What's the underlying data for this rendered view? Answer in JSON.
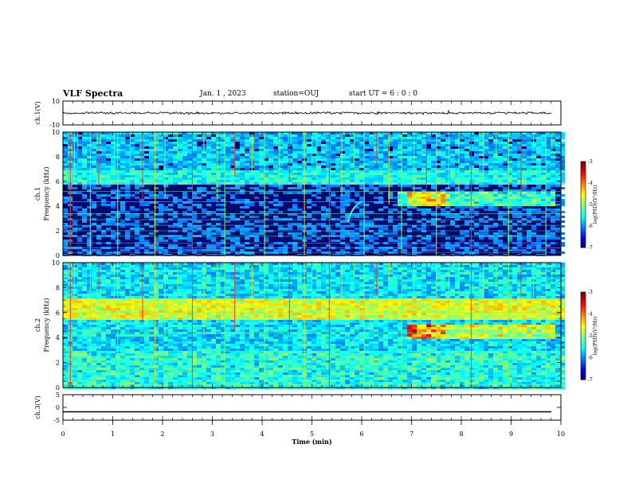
{
  "header": {
    "title": "VLF Spectra",
    "date": "Jan. 1 , 2023",
    "station": "station=OUJ",
    "start": "start UT = 6 : 0 : 0"
  },
  "chart_data": [
    {
      "type": "line",
      "panel": "ch1-waveform",
      "ylabel": "ch.1(V)",
      "ylim": [
        -10,
        10
      ],
      "yticks": [
        "10",
        "-10"
      ],
      "xlim": [
        0,
        10
      ],
      "baseline": 0,
      "grid": false
    },
    {
      "type": "heatmap",
      "panel": "ch1-spectrogram",
      "ylabel_top": "ch.1",
      "ylabel": "Frequency (kHz)",
      "ylim": [
        0,
        10
      ],
      "yticks": [
        "0",
        "2",
        "4",
        "6",
        "8",
        "10"
      ],
      "xlim": [
        0,
        10
      ],
      "colorbar": {
        "label": "log(PSD)(V²/Hz)",
        "range": [
          -7,
          -3
        ],
        "ticks": [
          "-3",
          "-4",
          "-5",
          "-6",
          "-7"
        ]
      },
      "features": {
        "band_khz": [
          5.8,
          7.0
        ],
        "chorus_minutes": [
          6.7,
          9.8
        ],
        "chorus_khz": [
          4.0,
          5.2
        ]
      }
    },
    {
      "type": "heatmap",
      "panel": "ch2-spectrogram",
      "ylabel_top": "ch.2",
      "ylabel": "Frequency (kHz)",
      "ylim": [
        0,
        10
      ],
      "yticks": [
        "0",
        "2",
        "4",
        "6",
        "8",
        "10"
      ],
      "xlim": [
        0,
        10
      ],
      "colorbar": {
        "label": "log(PSD)(V²/Hz)",
        "range": [
          -7,
          -3
        ],
        "ticks": [
          "-3",
          "-4",
          "-5",
          "-6",
          "-7"
        ]
      },
      "features": {
        "band_khz": [
          5.6,
          7.2
        ],
        "chorus_minutes": [
          6.9,
          9.8
        ],
        "chorus_khz": [
          4.0,
          5.2
        ]
      }
    },
    {
      "type": "line",
      "panel": "ch3-waveform",
      "ylabel": "ch.3(V)",
      "ylim": [
        -5,
        5
      ],
      "yticks": [
        "5",
        "0",
        "-5"
      ],
      "xlim": [
        0,
        10
      ],
      "baseline": -1.7,
      "grid": false
    }
  ],
  "xaxis": {
    "label": "Time (min)",
    "ticks": [
      "0",
      "1",
      "2",
      "3",
      "4",
      "5",
      "6",
      "7",
      "8",
      "9",
      "10"
    ]
  }
}
